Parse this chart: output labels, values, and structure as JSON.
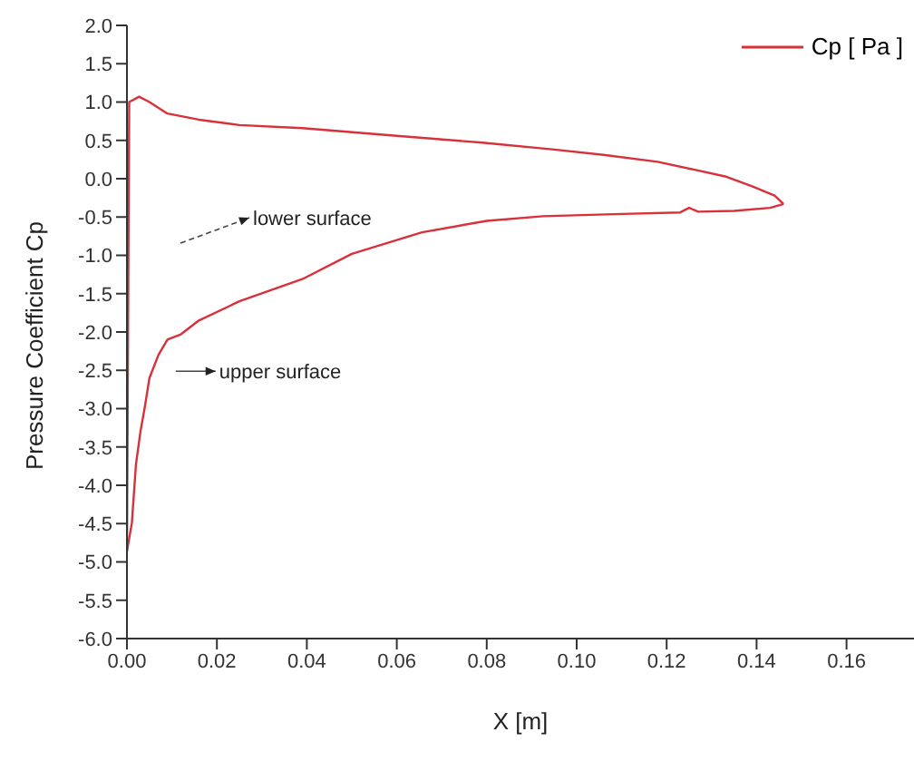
{
  "chart_data": {
    "type": "line",
    "xlabel": "X [m]",
    "ylabel": "Pressure Coefficient Cp",
    "xlim": [
      0,
      0.175
    ],
    "ylim": [
      -6,
      2
    ],
    "xticks": [
      {
        "value": 0,
        "label": "0.00"
      },
      {
        "value": 0.02,
        "label": "0.02"
      },
      {
        "value": 0.04,
        "label": "0.04"
      },
      {
        "value": 0.06,
        "label": "0.06"
      },
      {
        "value": 0.08,
        "label": "0.08"
      },
      {
        "value": 0.1,
        "label": "0.10"
      },
      {
        "value": 0.12,
        "label": "0.12"
      },
      {
        "value": 0.14,
        "label": "0.14"
      },
      {
        "value": 0.16,
        "label": "0.16"
      }
    ],
    "yticks": [
      {
        "value": -6,
        "label": "-6.0"
      },
      {
        "value": -5.5,
        "label": "-5.5"
      },
      {
        "value": -5,
        "label": "-5.0"
      },
      {
        "value": -4.5,
        "label": "-4.5"
      },
      {
        "value": -4,
        "label": "-4.0"
      },
      {
        "value": -3.5,
        "label": "-3.5"
      },
      {
        "value": -3,
        "label": "-3.0"
      },
      {
        "value": -2.5,
        "label": "-2.5"
      },
      {
        "value": -2,
        "label": "-2.0"
      },
      {
        "value": -1.5,
        "label": "-1.5"
      },
      {
        "value": -1,
        "label": "-1.0"
      },
      {
        "value": -0.5,
        "label": "-0.5"
      },
      {
        "value": 0,
        "label": "0.0"
      },
      {
        "value": 0.5,
        "label": "0.5"
      },
      {
        "value": 1,
        "label": "1.0"
      },
      {
        "value": 1.5,
        "label": "1.5"
      },
      {
        "value": 2,
        "label": "2.0"
      }
    ],
    "grid": false,
    "legend": "top right",
    "marker": "none",
    "line_style": "solid",
    "series": [
      {
        "name": "Cp [ Pa ]",
        "color": "#d9303a",
        "x": [
          0,
          0.0005,
          0.0027,
          0.005,
          0.009,
          0.016,
          0.025,
          0.039,
          0.06,
          0.079,
          0.095,
          0.106,
          0.118,
          0.126,
          0.133,
          0.139,
          0.144,
          0.146
        ],
        "values": [
          -4.86,
          1.0,
          1.07,
          1.0,
          0.85,
          0.77,
          0.7,
          0.66,
          0.56,
          0.47,
          0.38,
          0.31,
          0.22,
          0.12,
          0.03,
          -0.1,
          -0.22,
          -0.33
        ]
      },
      {
        "color": "#d9303a",
        "x": [
          0,
          0.0011,
          0.002,
          0.003,
          0.004,
          0.005,
          0.007,
          0.009,
          0.012,
          0.016,
          0.025,
          0.039,
          0.05,
          0.0656,
          0.08,
          0.0925,
          0.11,
          0.123,
          0.125,
          0.127,
          0.135,
          0.143,
          0.146
        ],
        "values": [
          -4.86,
          -4.49,
          -3.73,
          -3.3,
          -2.97,
          -2.6,
          -2.3,
          -2.1,
          -2.03,
          -1.85,
          -1.6,
          -1.31,
          -0.98,
          -0.7,
          -0.55,
          -0.49,
          -0.46,
          -0.44,
          -0.38,
          -0.43,
          -0.42,
          -0.38,
          -0.33
        ]
      }
    ],
    "annotations": [
      "lower surface",
      "upper surface"
    ]
  }
}
